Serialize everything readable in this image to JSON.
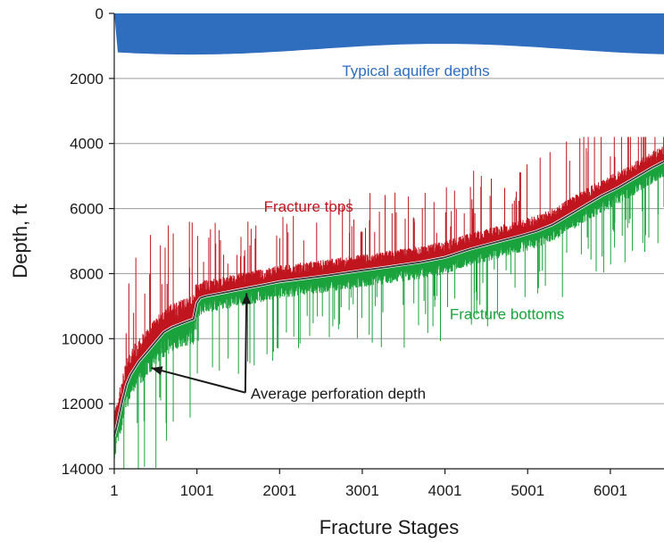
{
  "chart_data": {
    "type": "line",
    "xlabel": "Fracture Stages",
    "ylabel": "Depth, ft",
    "xlim": [
      1,
      6650
    ],
    "ylim": [
      14000,
      0
    ],
    "x_ticks": [
      "1",
      "1001",
      "2001",
      "3001",
      "4001",
      "5001",
      "6001"
    ],
    "y_ticks": [
      "0",
      "2000",
      "4000",
      "6000",
      "8000",
      "10000",
      "12000",
      "14000"
    ],
    "grid": "horizontal",
    "aquifer_band": {
      "label": "Typical aquifer depths",
      "top_depth": 0,
      "bottom_depth": 1100,
      "color": "#2f6dbf"
    },
    "series": [
      {
        "name": "Fracture tops",
        "color": "#c0141e",
        "style": "noisy-above",
        "label_at": [
          2351,
          6100
        ]
      },
      {
        "name": "Fracture bottoms",
        "color": "#1aa23c",
        "style": "noisy-below",
        "label_at": [
          4751,
          9400
        ]
      },
      {
        "name": "Average perforation depth",
        "color": "#3a3a3a",
        "style": "line",
        "x": [
          1,
          40,
          100,
          150,
          200,
          300,
          400,
          500,
          600,
          700,
          800,
          900,
          960,
          1000,
          1040,
          1100,
          1300,
          1500,
          1800,
          2000,
          2300,
          2600,
          3000,
          3300,
          3700,
          4000,
          4300,
          4600,
          4900,
          5100,
          5300,
          5500,
          5700,
          5900,
          6100,
          6300,
          6500,
          6650
        ],
        "y": [
          13000,
          12600,
          11900,
          11400,
          11100,
          10700,
          10400,
          10100,
          9800,
          9650,
          9550,
          9450,
          9400,
          8900,
          8750,
          8700,
          8600,
          8500,
          8350,
          8250,
          8150,
          8050,
          7900,
          7800,
          7650,
          7500,
          7250,
          7050,
          6850,
          6700,
          6500,
          6200,
          5900,
          5600,
          5350,
          5050,
          4750,
          4550
        ]
      }
    ],
    "annotation": {
      "text": "Average perforation depth",
      "pointers_x": [
        450,
        1601
      ],
      "pointers_y": [
        10900,
        8600
      ],
      "text_at": [
        1651,
        11850
      ]
    },
    "colors": {
      "tops": "#c0141e",
      "bottoms": "#1aa23c",
      "average": "#3a3a3a",
      "aquifer": "#2f6dbf",
      "grid": "#9a9a9a"
    }
  }
}
